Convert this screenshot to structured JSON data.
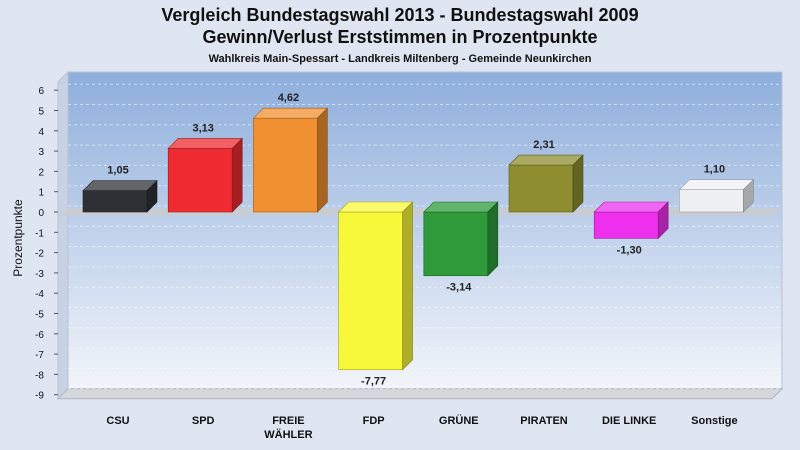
{
  "header": {
    "title_line1": "Vergleich Bundestagswahl 2013 - Bundestagswahl 2009",
    "title_line2": "Gewinn/Verlust Erststimmen in Prozentpunkte",
    "subtitle": "Wahlkreis Main-Spessart - Landkreis Miltenberg - Gemeinde Neunkirchen"
  },
  "chart_data": {
    "type": "bar",
    "title": "Vergleich Bundestagswahl 2013 - Bundestagswahl 2009",
    "subtitle": "Gewinn/Verlust Erststimmen in Prozentpunkte",
    "ylabel": "Prozentpunkte",
    "xlabel": "",
    "ylim": [
      -9,
      7
    ],
    "yticks": [
      6,
      5,
      4,
      3,
      2,
      1,
      0,
      -1,
      -2,
      -3,
      -4,
      -5,
      -6,
      -7,
      -8,
      -9
    ],
    "grid": true,
    "legend": "none",
    "categories": [
      "CSU",
      "SPD",
      "FREIE WÄHLER",
      "FDP",
      "GRÜNE",
      "PIRATEN",
      "DIE LINKE",
      "Sonstige"
    ],
    "category_lines": [
      [
        "CSU"
      ],
      [
        "SPD"
      ],
      [
        "FREIE",
        "WÄHLER"
      ],
      [
        "FDP"
      ],
      [
        "GRÜNE"
      ],
      [
        "PIRATEN"
      ],
      [
        "DIE LINKE"
      ],
      [
        "Sonstige"
      ]
    ],
    "values": [
      1.05,
      3.13,
      4.62,
      -7.77,
      -3.14,
      2.31,
      -1.3,
      1.1
    ],
    "value_labels": [
      "1,05",
      "3,13",
      "4,62",
      "-7,77",
      "-3,14",
      "2,31",
      "-1,30",
      "1,10"
    ],
    "colors": [
      "#2e3036",
      "#ee2b30",
      "#f09030",
      "#f8f83a",
      "#2e9a3a",
      "#8e8e30",
      "#ee30ee",
      "#eef0f4"
    ]
  }
}
